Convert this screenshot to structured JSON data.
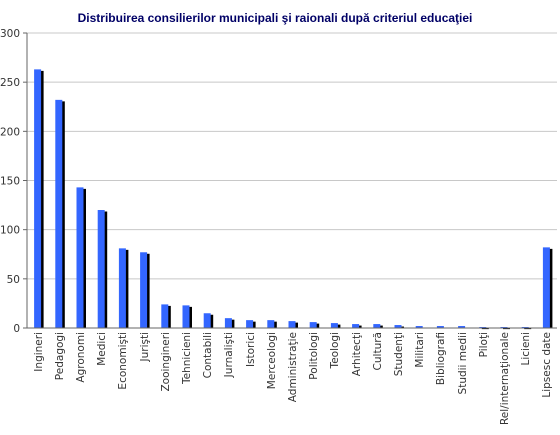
{
  "chart_data": {
    "type": "bar",
    "title": "Distribuirea consilierilor municipali şi raionali după criteriul educaţiei",
    "xlabel": "",
    "ylabel": "",
    "ylim": [
      0,
      300
    ],
    "yticks": [
      0,
      50,
      100,
      150,
      200,
      250,
      300
    ],
    "grid": true,
    "legend": "none",
    "bar_color": "#3366ff",
    "shadow_color": "#000000",
    "categories": [
      "Ingineri",
      "Pedagogi",
      "Agronomi",
      "Medici",
      "Economişti",
      "Jurişti",
      "Zooingineri",
      "Tehnicieni",
      "Contabili",
      "Jurnalişti",
      "Istorici",
      "Merceologi",
      "Administraţie",
      "Politologi",
      "Teologi",
      "Arhitecţi",
      "Cultură",
      "Studenţi",
      "Militari",
      "Bibliografi",
      "Studii medii",
      "Piloţi",
      "Rel/internaţionale",
      "Licieni",
      "Lipsesc date"
    ],
    "values": [
      263,
      232,
      143,
      120,
      81,
      77,
      24,
      23,
      15,
      10,
      8,
      8,
      7,
      6,
      5,
      4,
      4,
      3,
      2,
      2,
      2,
      1,
      1,
      1,
      82
    ]
  }
}
